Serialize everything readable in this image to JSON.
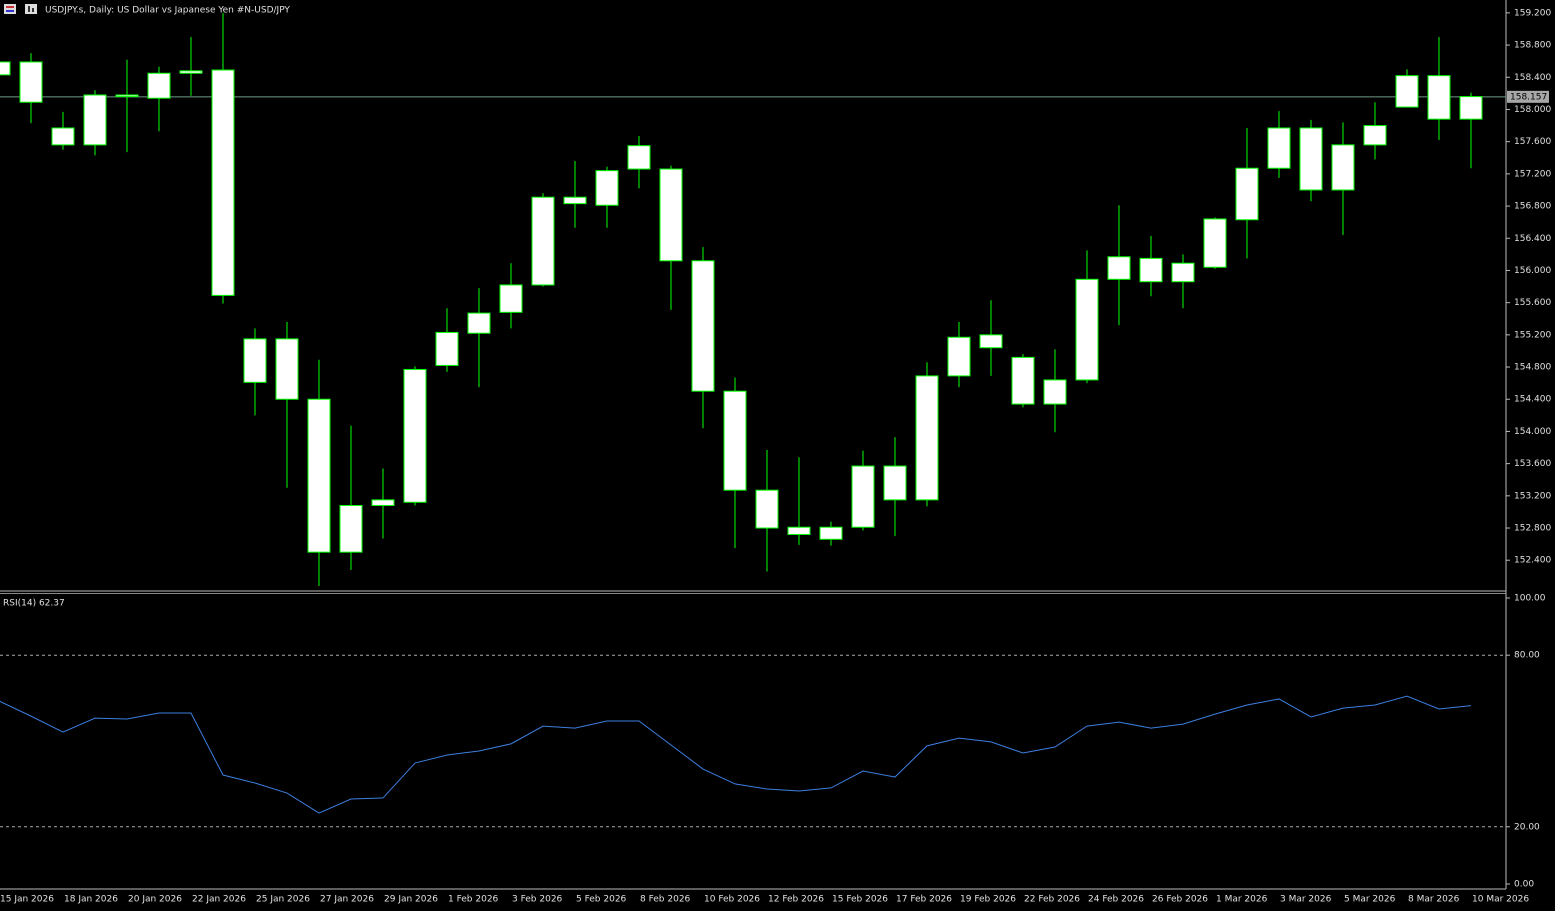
{
  "chart_data": [
    {
      "type": "candlestick",
      "title": "USDJPY.s, Daily:  US Dollar vs  Japanese Yen #N-USD/JPY",
      "categories": [
        "15 Jan 2026",
        null,
        "18 Jan 2026",
        null,
        "20 Jan 2026",
        null,
        "22 Jan 2026",
        null,
        "25 Jan 2026",
        null,
        "27 Jan 2026",
        null,
        "29 Jan 2026",
        null,
        "1 Feb 2026",
        null,
        "3 Feb 2026",
        null,
        "5 Feb 2026",
        null,
        "8 Feb 2026",
        null,
        "10 Feb 2026",
        null,
        "12 Feb 2026",
        null,
        "15 Feb 2026",
        null,
        "17 Feb 2026",
        null,
        "19 Feb 2026",
        null,
        "22 Feb 2026",
        null,
        "24 Feb 2026",
        null,
        "26 Feb 2026",
        null,
        "1 Mar 2026",
        null,
        "3 Mar 2026",
        null,
        "5 Mar 2026",
        null,
        "8 Mar 2026",
        null,
        "10 Mar 2026"
      ],
      "open": [
        158.59,
        158.59,
        157.77,
        157.56,
        158.18,
        158.14,
        158.45,
        158.49,
        155.15,
        155.15,
        154.4,
        152.5,
        153.08,
        153.12,
        154.82,
        155.22,
        155.48,
        155.82,
        156.91,
        156.81,
        157.26,
        157.26,
        156.12,
        154.5,
        153.27,
        152.81,
        152.66,
        152.81,
        153.57,
        153.15,
        154.69,
        155.2,
        154.92,
        154.34,
        154.64,
        155.89,
        156.15,
        155.86,
        156.04,
        156.63,
        157.27,
        157.77,
        157.0,
        157.56,
        158.03,
        158.42,
        157.88
      ],
      "high": [
        158.7,
        158.7,
        157.97,
        158.24,
        158.62,
        158.53,
        158.9,
        159.2,
        155.28,
        155.36,
        154.89,
        154.07,
        153.54,
        154.81,
        155.53,
        155.78,
        156.09,
        156.96,
        157.36,
        157.29,
        157.67,
        157.3,
        156.29,
        154.67,
        153.77,
        153.68,
        152.88,
        153.76,
        153.93,
        154.86,
        155.36,
        155.63,
        154.96,
        155.02,
        156.25,
        156.81,
        156.43,
        156.2,
        156.66,
        157.77,
        157.98,
        157.87,
        157.84,
        158.09,
        158.5,
        158.9,
        158.21
      ],
      "low": [
        158.3,
        157.83,
        157.5,
        157.43,
        157.47,
        157.73,
        158.17,
        155.59,
        154.2,
        153.3,
        152.08,
        152.28,
        152.67,
        153.08,
        154.74,
        154.55,
        155.28,
        155.8,
        156.53,
        156.53,
        157.02,
        155.51,
        154.04,
        152.55,
        152.26,
        152.59,
        152.58,
        152.77,
        152.7,
        153.07,
        154.55,
        154.69,
        154.3,
        153.99,
        154.6,
        155.32,
        155.68,
        155.53,
        156.02,
        156.15,
        157.15,
        156.86,
        156.44,
        157.38,
        158.03,
        157.62,
        157.27
      ],
      "close": [
        158.43,
        158.09,
        157.56,
        158.18,
        158.16,
        158.45,
        158.48,
        155.69,
        154.61,
        154.4,
        152.5,
        153.08,
        153.15,
        154.77,
        155.23,
        155.47,
        155.82,
        156.91,
        156.83,
        157.24,
        157.55,
        156.12,
        154.5,
        153.27,
        152.8,
        152.72,
        152.81,
        153.57,
        153.15,
        154.69,
        155.17,
        155.04,
        154.34,
        154.64,
        155.89,
        156.17,
        155.86,
        156.09,
        156.64,
        157.27,
        157.77,
        157.0,
        157.56,
        157.8,
        158.42,
        157.88,
        158.16
      ],
      "candle_fill": "#ffffff",
      "line_color": "#00ff00",
      "current_price": {
        "value": 158.157,
        "label": "158.157"
      },
      "current_price_color": "#6f9c86",
      "ylim": [
        152.03,
        159.36
      ],
      "yticks": [
        {
          "value": 159.2,
          "label": "159.200"
        },
        {
          "value": 158.8,
          "label": "158.800"
        },
        {
          "value": 158.4,
          "label": "158.400"
        },
        {
          "value": 158.0,
          "label": "158.000"
        },
        {
          "value": 157.6,
          "label": "157.600"
        },
        {
          "value": 157.2,
          "label": "157.200"
        },
        {
          "value": 156.8,
          "label": "156.800"
        },
        {
          "value": 156.4,
          "label": "156.400"
        },
        {
          "value": 156.0,
          "label": "156.000"
        },
        {
          "value": 155.6,
          "label": "155.600"
        },
        {
          "value": 155.2,
          "label": "155.200"
        },
        {
          "value": 154.8,
          "label": "154.800"
        },
        {
          "value": 154.4,
          "label": "154.400"
        },
        {
          "value": 154.0,
          "label": "154.000"
        },
        {
          "value": 153.6,
          "label": "153.600"
        },
        {
          "value": 153.2,
          "label": "153.200"
        },
        {
          "value": 152.8,
          "label": "152.800"
        },
        {
          "value": 152.4,
          "label": "152.400"
        }
      ]
    },
    {
      "type": "line",
      "title": "RSI(14) 62.37",
      "color": "#3d7fe0",
      "values": [
        64.0,
        58.7,
        53.1,
        58.0,
        57.7,
        59.8,
        59.8,
        38.1,
        35.3,
        31.8,
        24.8,
        29.7,
        30.1,
        42.3,
        45.1,
        46.5,
        49.0,
        55.2,
        54.5,
        57.0,
        57.0,
        48.6,
        40.2,
        35.0,
        33.2,
        32.5,
        33.6,
        39.5,
        37.4,
        48.3,
        51.0,
        49.7,
        45.8,
        47.9,
        55.2,
        56.6,
        54.5,
        55.9,
        59.4,
        62.6,
        64.7,
        58.4,
        61.5,
        62.6,
        65.7,
        61.2,
        62.37
      ],
      "levels": [
        80,
        20
      ],
      "ylim": [
        -1.4,
        101.4
      ],
      "yticks": [
        {
          "value": 100,
          "label": "100.00"
        },
        {
          "value": 80,
          "label": "80.00"
        },
        {
          "value": 20,
          "label": "20.00"
        },
        {
          "value": 0,
          "label": "0.00"
        }
      ]
    }
  ]
}
